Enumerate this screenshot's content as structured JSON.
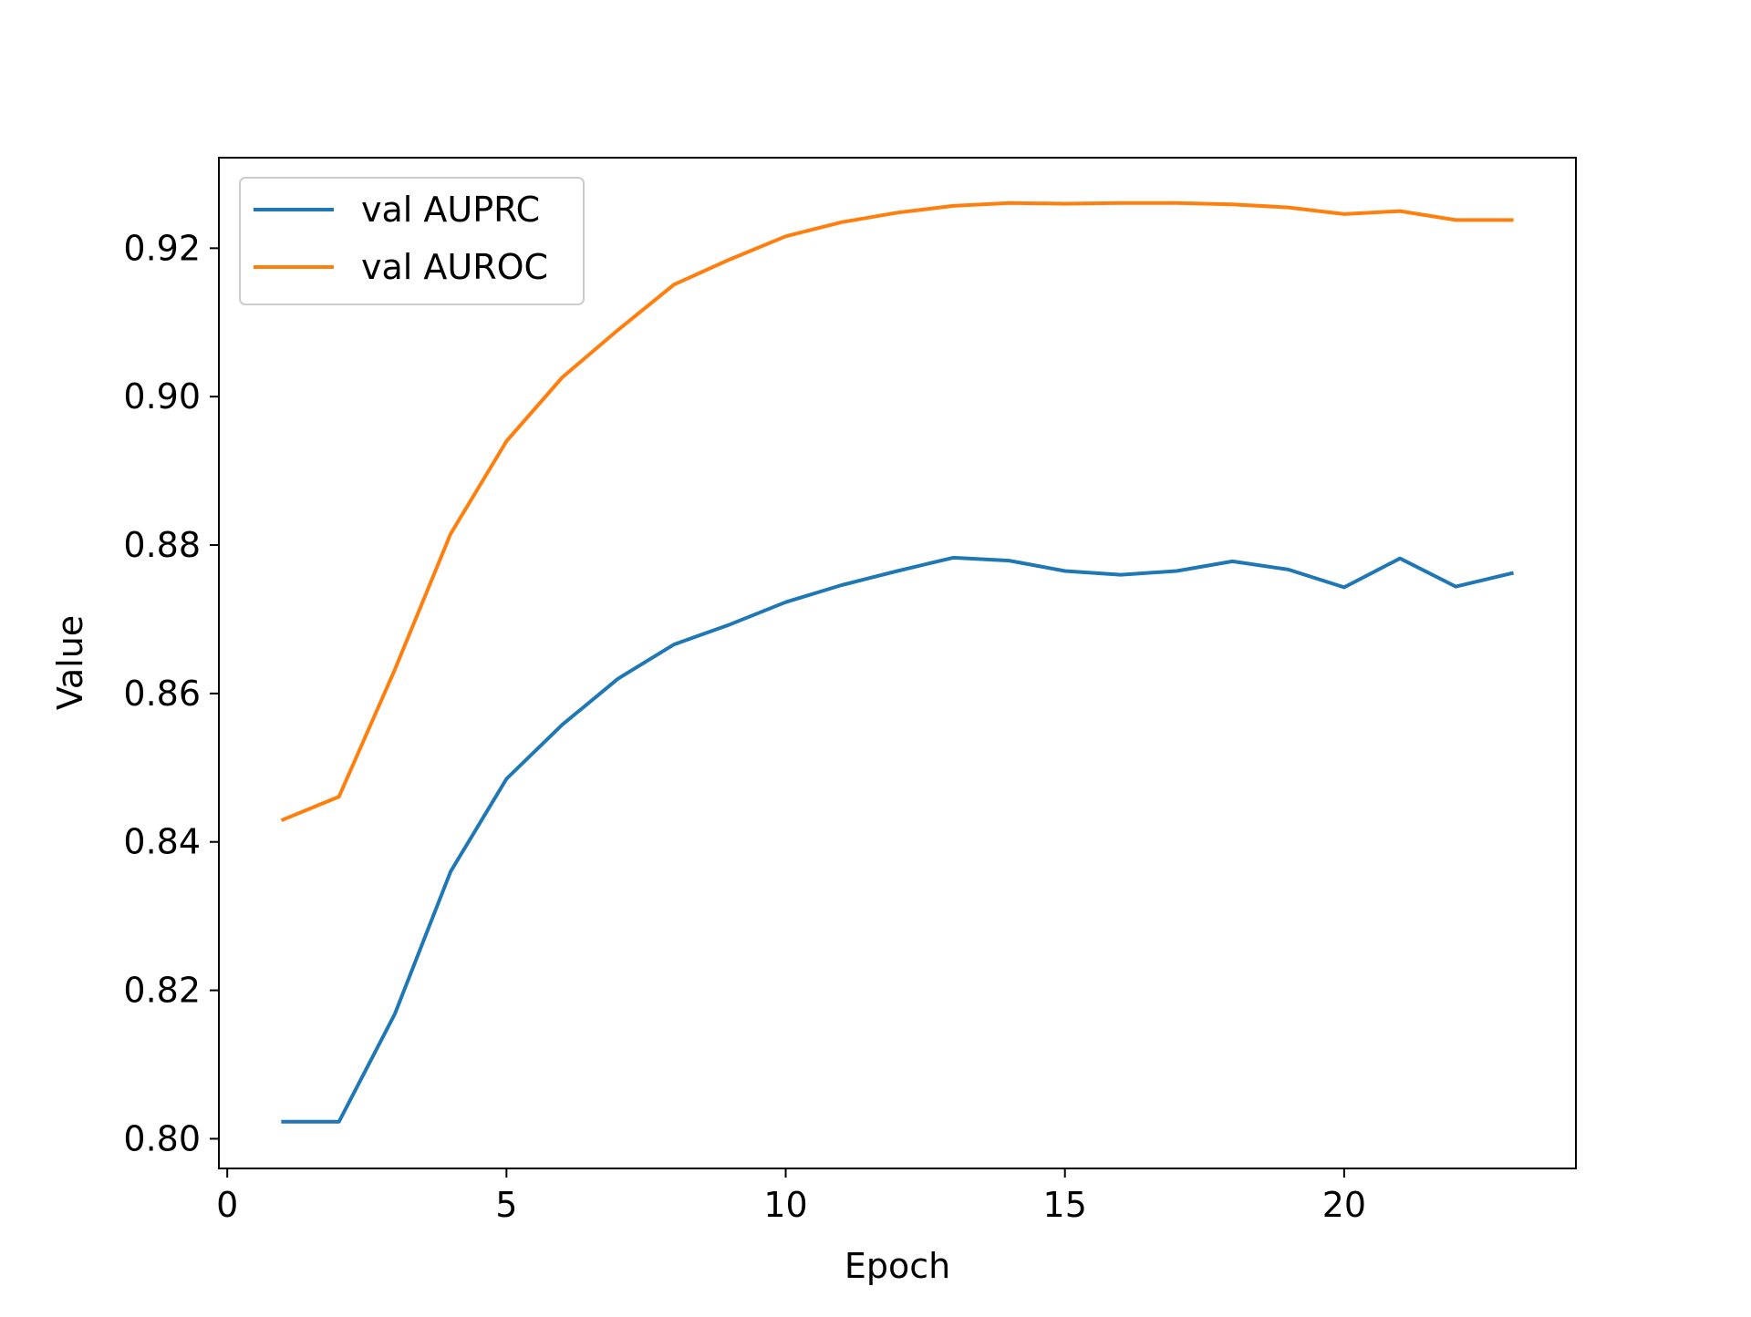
{
  "chart_data": {
    "type": "line",
    "title": "",
    "xlabel": "Epoch",
    "ylabel": "Value",
    "xlim": [
      -0.15,
      24.15
    ],
    "ylim": [
      0.796,
      0.9322
    ],
    "xticks": [
      0,
      5,
      10,
      15,
      20
    ],
    "yticks": [
      0.8,
      0.82,
      0.84,
      0.86,
      0.88,
      0.9,
      0.92
    ],
    "ytick_labels": [
      "0.80",
      "0.82",
      "0.84",
      "0.86",
      "0.88",
      "0.90",
      "0.92"
    ],
    "grid": false,
    "legend": "upper-left",
    "x": [
      1,
      2,
      3,
      4,
      5,
      6,
      7,
      8,
      9,
      10,
      11,
      12,
      13,
      14,
      15,
      16,
      17,
      18,
      19,
      20,
      21,
      22,
      23
    ],
    "series": [
      {
        "name": "val AUPRC",
        "color": "#1f77b4",
        "values": [
          0.8023,
          0.8023,
          0.8168,
          0.836,
          0.8485,
          0.8558,
          0.862,
          0.8666,
          0.8693,
          0.8723,
          0.8746,
          0.8765,
          0.8783,
          0.8779,
          0.8765,
          0.876,
          0.8765,
          0.8778,
          0.8767,
          0.8743,
          0.8782,
          0.8744,
          0.8762
        ]
      },
      {
        "name": "val AUROC",
        "color": "#ff7f0e",
        "values": [
          0.843,
          0.8461,
          0.8632,
          0.8815,
          0.894,
          0.9026,
          0.909,
          0.9151,
          0.9185,
          0.9216,
          0.9235,
          0.9248,
          0.9257,
          0.9261,
          0.926,
          0.9261,
          0.9261,
          0.9259,
          0.9255,
          0.9246,
          0.925,
          0.9238,
          0.9238
        ]
      }
    ]
  }
}
